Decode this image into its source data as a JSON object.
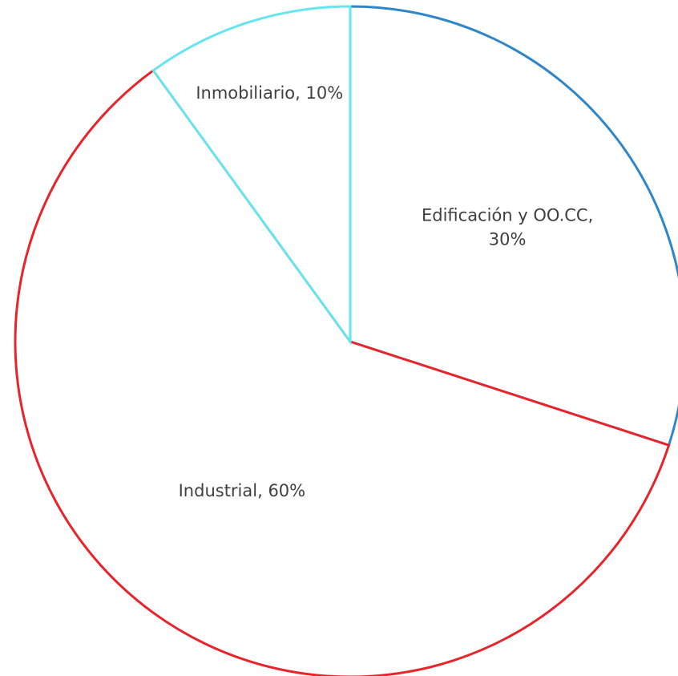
{
  "chart_data": {
    "type": "pie",
    "title": "",
    "categories": [
      "Edificación y OO.CC",
      "Industrial",
      "Inmobiliario"
    ],
    "values": [
      30,
      60,
      10
    ],
    "unit": "%",
    "colors": [
      "#2E86C8",
      "#E8242B",
      "#66E5EE"
    ],
    "labels": [
      {
        "lines": [
          "Edificación y OO.CC,",
          "30%"
        ]
      },
      {
        "lines": [
          "Industrial, 60%"
        ]
      },
      {
        "lines": [
          "Inmobiliario, 10%"
        ]
      }
    ],
    "start_angle_deg": 0,
    "direction": "clockwise",
    "legend": "none",
    "fill": "#FFFFFF"
  }
}
